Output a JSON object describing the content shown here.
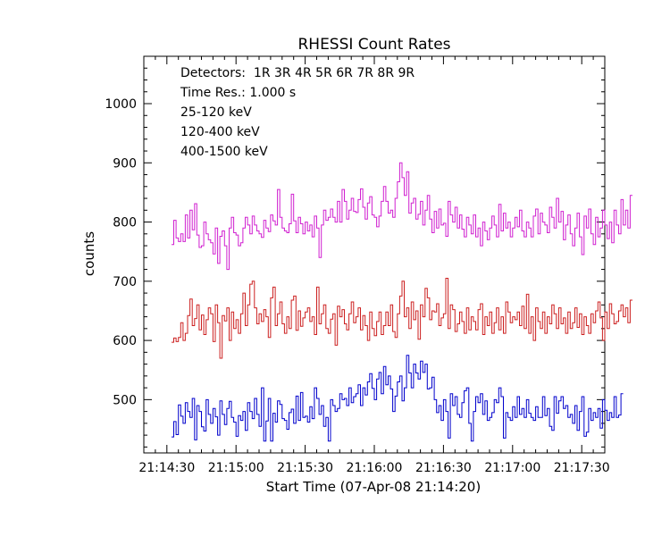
{
  "chart_data": {
    "type": "line",
    "title": "RHESSI Count Rates",
    "xlabel": "Start Time (07-Apr-08 21:14:20)",
    "ylabel": "counts",
    "x_range_seconds_after_start": [
      0,
      200
    ],
    "ylim": [
      410,
      1080
    ],
    "x_tick_labels": [
      "21:14:30",
      "21:15:00",
      "21:15:30",
      "21:16:00",
      "21:16:30",
      "21:17:00",
      "21:17:30"
    ],
    "x_tick_seconds_after_start": [
      10,
      40,
      70,
      100,
      130,
      160,
      190
    ],
    "y_ticks": [
      500,
      600,
      700,
      800,
      900,
      1000
    ],
    "info": {
      "detectors": "Detectors:  1R 3R 4R 5R 6R 7R 8R 9R",
      "time_res": "Time Res.: 1.000 s"
    },
    "series": [
      {
        "name": "25-120 keV",
        "color": "#0000cc",
        "values": [
          437,
          463,
          441,
          491,
          472,
          460,
          495,
          480,
          470,
          502,
          432,
          490,
          480,
          454,
          447,
          500,
          475,
          460,
          485,
          471,
          440,
          498,
          475,
          458,
          485,
          497,
          470,
          462,
          438,
          473,
          465,
          480,
          448,
          495,
          480,
          468,
          502,
          475,
          455,
          520,
          430,
          464,
          502,
          430,
          477,
          462,
          498,
          492,
          468,
          465,
          450,
          478,
          484,
          460,
          506,
          465,
          512,
          470,
          472,
          462,
          488,
          468,
          520,
          502,
          475,
          490,
          455,
          470,
          430,
          500,
          490,
          480,
          485,
          510,
          500,
          502,
          490,
          520,
          495,
          505,
          510,
          525,
          490,
          520,
          508,
          530,
          544,
          519,
          500,
          535,
          546,
          510,
          556,
          525,
          540,
          518,
          480,
          506,
          530,
          540,
          498,
          520,
          575,
          545,
          520,
          560,
          545,
          535,
          565,
          546,
          560,
          518,
          520,
          538,
          500,
          478,
          490,
          465,
          500,
          480,
          435,
          510,
          490,
          505,
          475,
          470,
          495,
          515,
          520,
          460,
          430,
          480,
          505,
          495,
          510,
          475,
          498,
          465,
          470,
          478,
          500,
          495,
          520,
          505,
          435,
          478,
          470,
          465,
          488,
          470,
          505,
          475,
          485,
          470,
          500,
          477,
          470,
          465,
          488,
          470,
          470,
          505,
          473,
          485,
          455,
          448,
          505,
          477,
          498,
          505,
          485,
          490,
          470,
          475,
          460,
          490,
          448,
          480,
          505,
          438,
          445,
          485,
          465,
          478,
          470,
          485,
          452,
          500,
          482,
          465,
          478,
          470,
          505,
          470,
          474,
          510
        ]
      },
      {
        "name": "120-400 keV",
        "color": "#d020d0",
        "values": [
          762,
          803,
          773,
          767,
          780,
          767,
          812,
          773,
          820,
          787,
          831,
          778,
          757,
          760,
          800,
          780,
          770,
          765,
          746,
          790,
          730,
          776,
          785,
          760,
          720,
          790,
          808,
          782,
          778,
          760,
          765,
          790,
          808,
          795,
          780,
          810,
          795,
          785,
          780,
          774,
          803,
          790,
          784,
          812,
          802,
          795,
          855,
          808,
          790,
          785,
          782,
          797,
          847,
          802,
          782,
          808,
          797,
          780,
          800,
          785,
          795,
          775,
          810,
          790,
          740,
          795,
          820,
          803,
          808,
          822,
          808,
          800,
          835,
          800,
          855,
          835,
          805,
          820,
          840,
          818,
          816,
          838,
          856,
          825,
          805,
          832,
          843,
          812,
          808,
          792,
          810,
          835,
          860,
          835,
          815,
          820,
          808,
          840,
          868,
          900,
          875,
          845,
          885,
          815,
          832,
          840,
          805,
          813,
          835,
          795,
          820,
          845,
          805,
          782,
          818,
          790,
          822,
          795,
          798,
          776,
          835,
          812,
          800,
          825,
          790,
          812,
          788,
          775,
          808,
          795,
          780,
          812,
          775,
          790,
          760,
          800,
          785,
          770,
          790,
          810,
          795,
          775,
          830,
          785,
          815,
          790,
          800,
          775,
          790,
          808,
          792,
          820,
          785,
          775,
          800,
          790,
          775,
          810,
          822,
          780,
          815,
          800,
          795,
          782,
          825,
          808,
          790,
          840,
          800,
          818,
          770,
          795,
          812,
          780,
          760,
          790,
          815,
          775,
          745,
          810,
          790,
          822,
          780,
          762,
          808,
          775,
          790,
          820,
          795,
          772,
          800,
          765,
          820,
          795,
          780,
          838,
          795,
          820,
          790,
          845
        ]
      },
      {
        "name": "400-1500 keV",
        "color": "#cc2020",
        "values": [
          597,
          604,
          598,
          605,
          630,
          600,
          612,
          642,
          670,
          625,
          637,
          660,
          618,
          643,
          610,
          635,
          655,
          645,
          598,
          660,
          630,
          570,
          642,
          633,
          655,
          600,
          648,
          620,
          635,
          612,
          645,
          680,
          625,
          660,
          695,
          700,
          655,
          628,
          645,
          632,
          652,
          640,
          605,
          672,
          690,
          625,
          645,
          665,
          628,
          612,
          640,
          620,
          668,
          675,
          617,
          650,
          624,
          638,
          648,
          655,
          632,
          640,
          610,
          690,
          628,
          645,
          660,
          620,
          612,
          636,
          645,
          592,
          658,
          640,
          652,
          628,
          618,
          645,
          665,
          630,
          640,
          655,
          618,
          642,
          625,
          600,
          648,
          620,
          608,
          632,
          648,
          610,
          625,
          648,
          625,
          660,
          615,
          605,
          645,
          675,
          700,
          640,
          655,
          620,
          665,
          635,
          650,
          602,
          660,
          640,
          688,
          672,
          635,
          650,
          648,
          662,
          625,
          638,
          645,
          705,
          620,
          660,
          652,
          615,
          628,
          648,
          632,
          612,
          655,
          618,
          640,
          632,
          618,
          652,
          662,
          610,
          640,
          625,
          648,
          612,
          630,
          655,
          618,
          640,
          612,
          665,
          648,
          630,
          640,
          635,
          648,
          625,
          658,
          620,
          678,
          612,
          640,
          600,
          655,
          632,
          620,
          648,
          612,
          640,
          628,
          660,
          645,
          620,
          655,
          628,
          638,
          612,
          648,
          620,
          630,
          655,
          622,
          645,
          610,
          640,
          625,
          612,
          645,
          630,
          650,
          665,
          638,
          600,
          648,
          620,
          662,
          645,
          628,
          632,
          650,
          660,
          640,
          655,
          630,
          668
        ]
      }
    ]
  }
}
